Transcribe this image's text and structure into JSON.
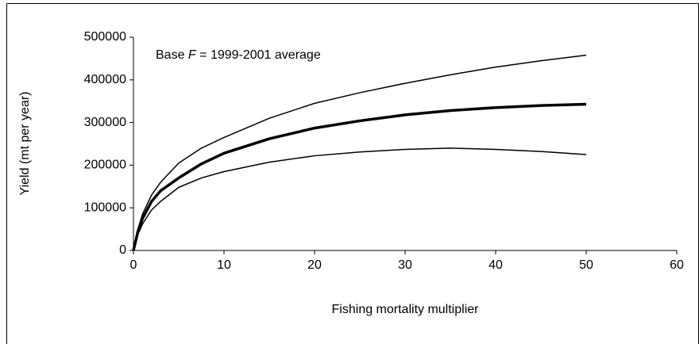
{
  "chart_data": {
    "type": "line",
    "x_label": "Fishing mortality multiplier",
    "y_label": "Yield (mt per year)",
    "annotation": [
      "Base ",
      "F",
      " = 1999-2001 average"
    ],
    "x": [
      0,
      0.5,
      1,
      2,
      3,
      5,
      7.5,
      10,
      15,
      20,
      25,
      30,
      35,
      40,
      45,
      50
    ],
    "series": [
      {
        "color": "#000000",
        "line_width": 1.5,
        "values": [
          0,
          50000,
          85000,
          130000,
          160000,
          205000,
          240000,
          265000,
          310000,
          345000,
          370000,
          392000,
          412000,
          430000,
          445000,
          458000
        ]
      },
      {
        "color": "#000000",
        "line_width": 3.5,
        "values": [
          0,
          45000,
          75000,
          115000,
          140000,
          170000,
          203000,
          228000,
          262000,
          287000,
          304000,
          318000,
          328000,
          335000,
          340000,
          343000
        ]
      },
      {
        "color": "#000000",
        "line_width": 1.5,
        "values": [
          0,
          38000,
          62000,
          95000,
          115000,
          148000,
          170000,
          185000,
          207000,
          222000,
          231000,
          237000,
          240000,
          237000,
          232000,
          225000
        ]
      }
    ],
    "xlim": [
      0,
      60
    ],
    "xticks": [
      0,
      10,
      20,
      30,
      40,
      50,
      60
    ],
    "ylim": [
      0,
      500000
    ],
    "yticks": [
      0,
      100000,
      200000,
      300000,
      400000,
      500000
    ],
    "grid": false
  }
}
